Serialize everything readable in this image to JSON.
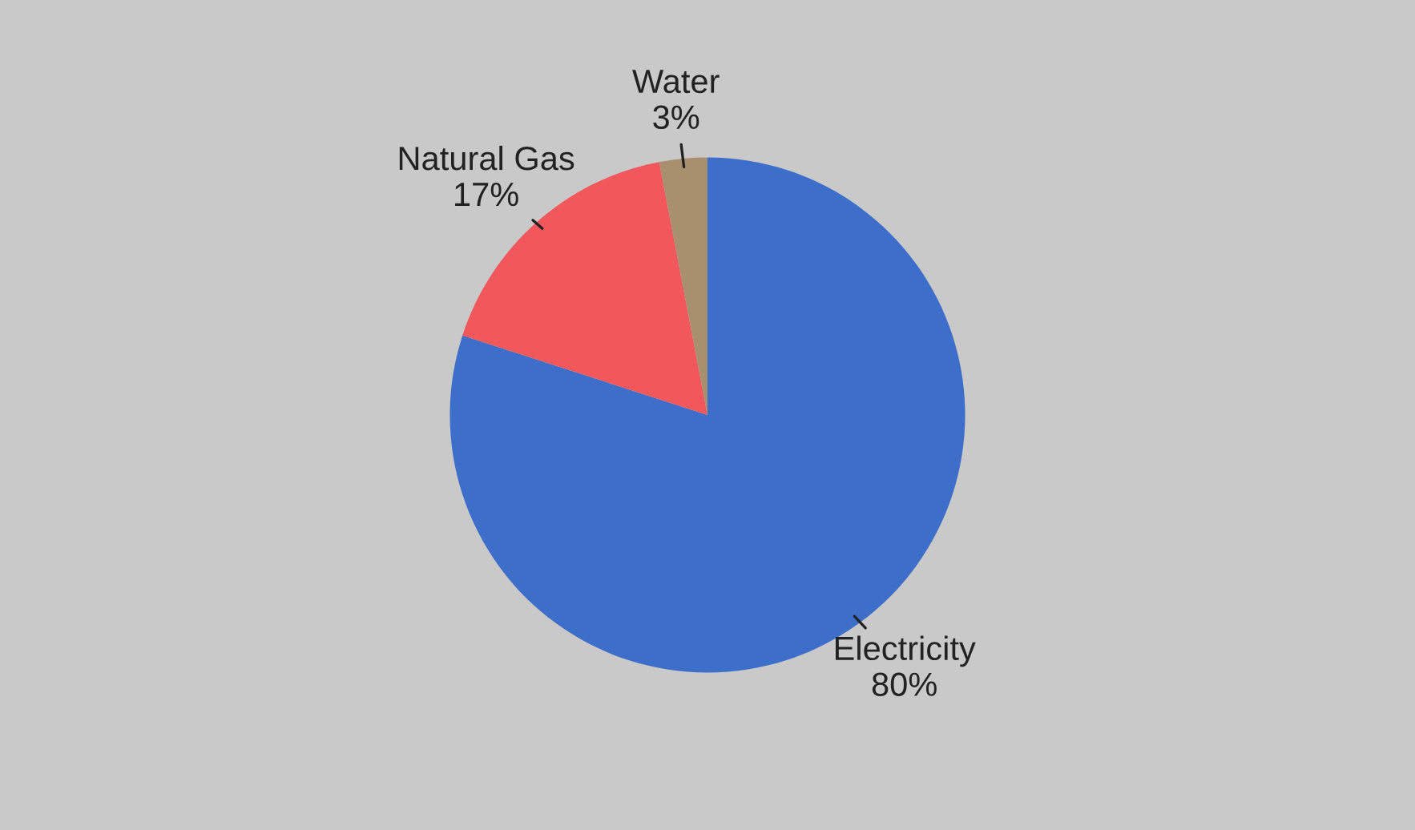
{
  "chart_data": {
    "type": "pie",
    "categories": [
      "Electricity",
      "Natural Gas",
      "Water"
    ],
    "values": [
      80,
      17,
      3
    ],
    "value_labels": [
      "80%",
      "17%",
      "3%"
    ],
    "colors": [
      "#3d6ec9",
      "#f2575c",
      "#a88f6e"
    ],
    "legend": false
  }
}
